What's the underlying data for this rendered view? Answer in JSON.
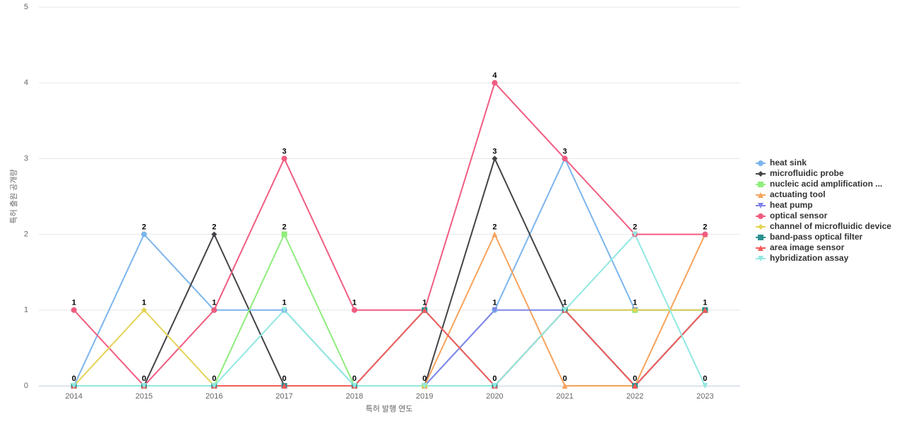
{
  "chart_data": {
    "type": "line",
    "x_label": "특허 발행 연도",
    "y_label": "특허 출원 공개량",
    "categories": [
      "2014",
      "2015",
      "2016",
      "2017",
      "2018",
      "2019",
      "2020",
      "2021",
      "2022",
      "2023"
    ],
    "ylim": [
      0,
      5
    ],
    "yticks": [
      0,
      1,
      2,
      3,
      4,
      5
    ],
    "grid": true,
    "legend": "right",
    "series": [
      {
        "name": "heat sink",
        "color": "#7cb5ec",
        "values": [
          0,
          2,
          1,
          1,
          0,
          0,
          1,
          3,
          1,
          1
        ]
      },
      {
        "name": "microfluidic probe",
        "color": "#434348",
        "values": [
          0,
          0,
          2,
          0,
          0,
          0,
          3,
          1,
          0,
          1
        ]
      },
      {
        "name": "nucleic acid amplification ...",
        "color": "#90ed7d",
        "values": [
          0,
          0,
          0,
          2,
          0,
          0,
          0,
          1,
          1,
          1
        ]
      },
      {
        "name": "actuating tool",
        "color": "#f7a35c",
        "values": [
          0,
          0,
          0,
          0,
          0,
          0,
          2,
          0,
          0,
          2
        ]
      },
      {
        "name": "heat pump",
        "color": "#8085e9",
        "values": [
          0,
          0,
          0,
          0,
          0,
          0,
          1,
          1,
          1,
          1
        ]
      },
      {
        "name": "optical sensor",
        "color": "#f15c80",
        "values": [
          1,
          0,
          1,
          3,
          1,
          1,
          4,
          3,
          2,
          2
        ]
      },
      {
        "name": "channel of microfluidic device",
        "color": "#e4d354",
        "values": [
          0,
          1,
          0,
          0,
          0,
          0,
          0,
          1,
          1,
          1
        ]
      },
      {
        "name": "band-pass optical filter",
        "color": "#2b908f",
        "values": [
          0,
          0,
          0,
          0,
          0,
          1,
          0,
          1,
          0,
          1
        ]
      },
      {
        "name": "area image sensor",
        "color": "#f45b5b",
        "values": [
          0,
          0,
          0,
          0,
          0,
          1,
          0,
          1,
          0,
          1
        ]
      },
      {
        "name": "hybridization assay",
        "color": "#91e8e1",
        "values": [
          0,
          0,
          0,
          1,
          0,
          0,
          0,
          1,
          2,
          0
        ]
      }
    ]
  }
}
